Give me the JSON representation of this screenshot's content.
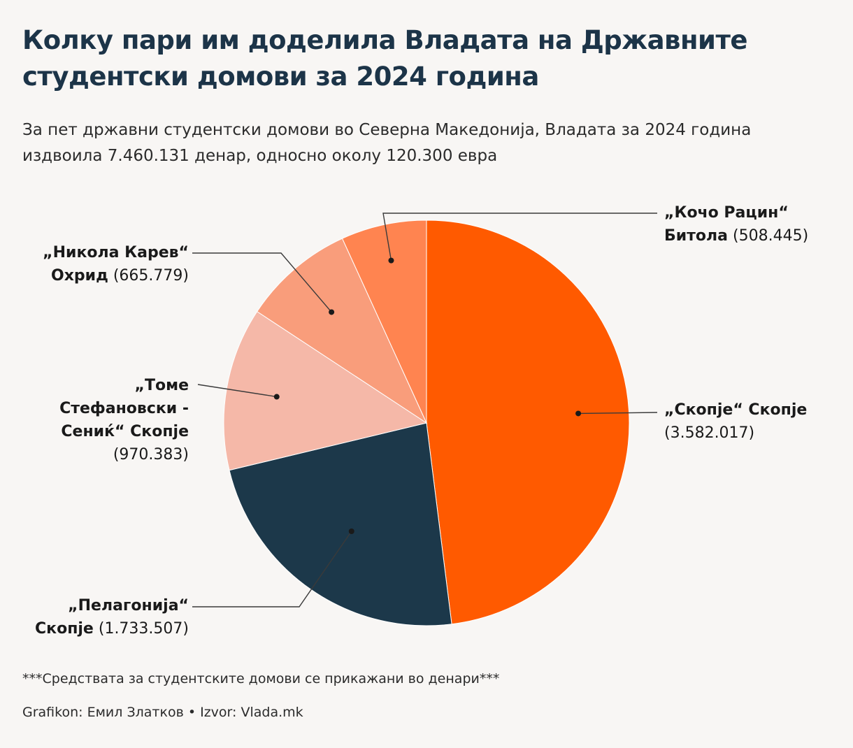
{
  "title": "Колку пари им доделила Владата на Државните студентски домови за 2024 година",
  "subtitle": "За пет државни студентски домови во Северна Македонија, Владата за 2024 година издвоила 7.460.131 денар, односно околу 120.300 евра",
  "note": "***Средствата за студентските домови се прикажани во денари***",
  "source": {
    "author_label": "Grafikon: Емил Златков",
    "separator": "•",
    "source_label": "Izvor: Vlada.mk"
  },
  "chart_data": {
    "type": "pie",
    "title": "Колку пари им доделила Владата на Државните студентски домови за 2024 година",
    "unit": "денари",
    "total": 7460131,
    "slices": [
      {
        "name": "„Скопје“ Скопје",
        "name_line1": "„Скопје“ Скопје",
        "name_line2": "",
        "value": 3582017,
        "value_label": "(3.582.017)",
        "color": "#ff5a00"
      },
      {
        "name": "„Пелагонија“ Скопје",
        "name_line1": "„Пелагонија“",
        "name_line2": "Скопје",
        "value": 1733507,
        "value_label": "(1.733.507)",
        "color": "#1c384a"
      },
      {
        "name": "„Томе Стефановски - Сениќ“ Скопје",
        "name_line1": "„Томе",
        "name_line2": "Стефановски -",
        "name_line3": "Сениќ“ Скопје",
        "value": 970383,
        "value_label": "(970.383)",
        "color": "#f5b8a8"
      },
      {
        "name": "„Никола Карев“ Охрид",
        "name_line1": "„Никола Карев“",
        "name_line2": "Охрид",
        "value": 665779,
        "value_label": "(665.779)",
        "color": "#f99d7b"
      },
      {
        "name": "„Кочо Рацин“ Битола",
        "name_line1": "„Кочо Рацин“",
        "name_line2": "Битола",
        "value": 508445,
        "value_label": "(508.445)",
        "color": "#ff8450"
      }
    ]
  }
}
